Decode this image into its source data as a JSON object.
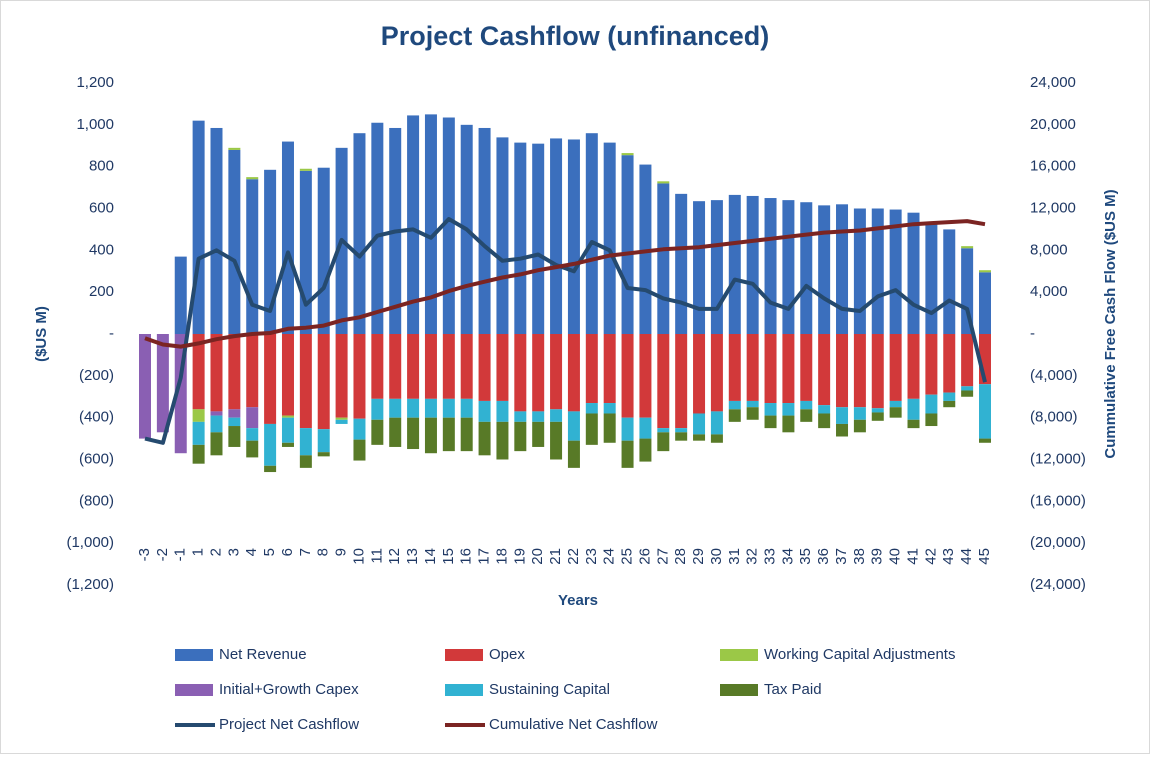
{
  "chart_data": {
    "type": "bar",
    "title": "Project Cashflow (unfinanced)",
    "x_label": "Years",
    "y_label": "($US M)",
    "y2_label": "Cummulative Free Cash Flow ($US M)",
    "categories": [
      "-3",
      "-2",
      "-1",
      "1",
      "2",
      "3",
      "4",
      "5",
      "6",
      "7",
      "8",
      "9",
      "10",
      "11",
      "12",
      "13",
      "14",
      "15",
      "16",
      "17",
      "18",
      "19",
      "20",
      "21",
      "22",
      "23",
      "24",
      "25",
      "26",
      "27",
      "28",
      "29",
      "30",
      "31",
      "32",
      "33",
      "34",
      "35",
      "36",
      "37",
      "38",
      "39",
      "40",
      "41",
      "42",
      "43",
      "44",
      "45"
    ],
    "ylim": [
      -1200,
      1200
    ],
    "yticks": [
      {
        "value": -1200,
        "label": "(1,200)"
      },
      {
        "value": -1000,
        "label": "(1,000)"
      },
      {
        "value": -800,
        "label": "(800)"
      },
      {
        "value": -600,
        "label": "(600)"
      },
      {
        "value": -400,
        "label": "(400)"
      },
      {
        "value": -200,
        "label": "(200)"
      },
      {
        "value": 0,
        "label": "-"
      },
      200,
      400,
      600,
      800,
      {
        "value": 1000,
        "label": "1,000"
      },
      {
        "value": 1200,
        "label": "1,200"
      }
    ],
    "y2lim": [
      -24000,
      24000
    ],
    "y2ticks": [
      {
        "value": -24000,
        "label": "(24,000)"
      },
      {
        "value": -20000,
        "label": "(20,000)"
      },
      {
        "value": -16000,
        "label": "(16,000)"
      },
      {
        "value": -12000,
        "label": "(12,000)"
      },
      {
        "value": -8000,
        "label": "(8,000)"
      },
      {
        "value": -4000,
        "label": "(4,000)"
      },
      {
        "value": 0,
        "label": "-"
      },
      {
        "value": 4000,
        "label": "4,000"
      },
      {
        "value": 8000,
        "label": "8,000"
      },
      {
        "value": 12000,
        "label": "12,000"
      },
      {
        "value": 16000,
        "label": "16,000"
      },
      {
        "value": 20000,
        "label": "20,000"
      },
      {
        "value": 24000,
        "label": "24,000"
      }
    ],
    "stacked": true,
    "series": [
      {
        "name": "Net Revenue",
        "type": "bar",
        "color": "#3b6fbd",
        "values": [
          0,
          0,
          370,
          1020,
          985,
          880,
          740,
          785,
          920,
          780,
          795,
          890,
          960,
          1010,
          985,
          1045,
          1050,
          1035,
          1000,
          985,
          940,
          915,
          910,
          935,
          930,
          960,
          915,
          855,
          810,
          720,
          670,
          635,
          640,
          665,
          660,
          650,
          640,
          630,
          615,
          620,
          600,
          600,
          595,
          580,
          530,
          500,
          410,
          295
        ]
      },
      {
        "name": "Opex",
        "type": "bar",
        "color": "#d2393a",
        "values": [
          0,
          0,
          0,
          -360,
          -370,
          -360,
          -350,
          -430,
          -390,
          -450,
          -455,
          -400,
          -405,
          -310,
          -310,
          -310,
          -310,
          -310,
          -310,
          -320,
          -320,
          -370,
          -370,
          -360,
          -370,
          -330,
          -330,
          -400,
          -400,
          -450,
          -450,
          -380,
          -370,
          -320,
          -320,
          -330,
          -330,
          -320,
          -340,
          -350,
          -350,
          -355,
          -320,
          -310,
          -290,
          -280,
          -250,
          -240
        ]
      },
      {
        "name": "Working Capital Adjustments",
        "type": "bar",
        "color": "#9bc847",
        "values": [
          0,
          0,
          0,
          -60,
          0,
          10,
          10,
          0,
          -10,
          10,
          0,
          -10,
          0,
          0,
          0,
          0,
          0,
          0,
          0,
          0,
          0,
          0,
          0,
          0,
          0,
          0,
          0,
          10,
          0,
          10,
          0,
          0,
          0,
          0,
          0,
          0,
          0,
          0,
          0,
          0,
          0,
          0,
          0,
          0,
          0,
          0,
          10,
          10
        ]
      },
      {
        "name": "Initial+Growth Capex",
        "type": "bar",
        "color": "#8a5fb3",
        "values": [
          -500,
          -470,
          -570,
          0,
          -20,
          -40,
          -100,
          0,
          0,
          0,
          0,
          0,
          0,
          0,
          0,
          0,
          0,
          0,
          0,
          0,
          0,
          0,
          0,
          0,
          0,
          0,
          0,
          0,
          0,
          0,
          0,
          0,
          0,
          0,
          0,
          0,
          0,
          0,
          0,
          0,
          0,
          0,
          0,
          0,
          0,
          0,
          0,
          0
        ]
      },
      {
        "name": "Sustaining Capital",
        "type": "bar",
        "color": "#31b2d2",
        "values": [
          0,
          0,
          0,
          -110,
          -80,
          -40,
          -60,
          -200,
          -120,
          -130,
          -110,
          -20,
          -100,
          -100,
          -90,
          -90,
          -90,
          -90,
          -90,
          -100,
          -100,
          -50,
          -50,
          -60,
          -140,
          -50,
          -50,
          -110,
          -100,
          -20,
          -20,
          -100,
          -110,
          -40,
          -30,
          -60,
          -60,
          -40,
          -40,
          -80,
          -60,
          -20,
          -30,
          -100,
          -90,
          -40,
          -20,
          -260
        ]
      },
      {
        "name": "Tax Paid",
        "type": "bar",
        "color": "#587a27",
        "values": [
          0,
          0,
          0,
          -90,
          -110,
          -100,
          -80,
          -30,
          -20,
          -60,
          -20,
          0,
          -100,
          -120,
          -140,
          -150,
          -170,
          -160,
          -160,
          -160,
          -180,
          -140,
          -120,
          -180,
          -130,
          -150,
          -140,
          -130,
          -110,
          -90,
          -40,
          -30,
          -40,
          -60,
          -60,
          -60,
          -80,
          -60,
          -70,
          -60,
          -60,
          -40,
          -50,
          -40,
          -60,
          -30,
          -30,
          -20
        ]
      },
      {
        "name": "Project Net Cashflow",
        "type": "line",
        "color": "#254a6f",
        "values": [
          -500,
          -520,
          -210,
          360,
          400,
          350,
          140,
          110,
          390,
          140,
          220,
          450,
          370,
          470,
          490,
          500,
          460,
          550,
          500,
          420,
          350,
          360,
          380,
          330,
          300,
          440,
          400,
          220,
          210,
          170,
          150,
          120,
          120,
          260,
          240,
          150,
          120,
          230,
          170,
          120,
          110,
          180,
          210,
          140,
          100,
          160,
          120,
          -230
        ]
      },
      {
        "name": "Cumulative Net Cashflow",
        "type": "line",
        "axis": "y2",
        "color": "#7b2422",
        "values": [
          -400,
          -1000,
          -1200,
          -900,
          -500,
          -200,
          0,
          100,
          500,
          600,
          800,
          1300,
          1600,
          2100,
          2600,
          3100,
          3500,
          4100,
          4600,
          5000,
          5400,
          5700,
          6100,
          6400,
          6700,
          7100,
          7500,
          7700,
          7900,
          8100,
          8200,
          8300,
          8500,
          8700,
          8900,
          9100,
          9300,
          9500,
          9700,
          9800,
          9900,
          10100,
          10300,
          10500,
          10600,
          10700,
          10800,
          10500
        ]
      }
    ]
  }
}
